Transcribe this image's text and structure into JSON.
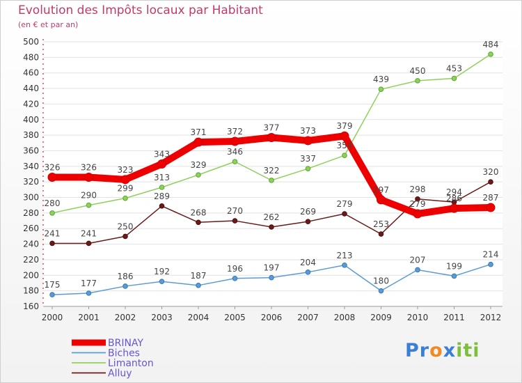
{
  "title": "Evolution des Impôts locaux par Habitant",
  "subtitle": "(en € et par an)",
  "logo": {
    "text": "Proxiti",
    "letters": [
      "P",
      "r",
      "o",
      "x",
      "i",
      "t",
      "i"
    ],
    "colors": [
      "#3a7fd5",
      "#3a7fd5",
      "#f08a24",
      "#3a7fd5",
      "#7cbf3a",
      "#7cbf3a",
      "#7cbf3a"
    ]
  },
  "chart_data": {
    "type": "line",
    "title": "Evolution des Impôts locaux par Habitant",
    "subtitle": "(en € et par an)",
    "xlabel": "",
    "ylabel": "",
    "categories": [
      "2000",
      "2001",
      "2002",
      "2003",
      "2004",
      "2005",
      "2006",
      "2007",
      "2008",
      "2009",
      "2010",
      "2011",
      "2012"
    ],
    "ylim": [
      160,
      500
    ],
    "yticks": [
      160,
      180,
      200,
      220,
      240,
      260,
      280,
      300,
      320,
      340,
      360,
      380,
      400,
      420,
      440,
      460,
      480,
      500
    ],
    "grid": "horizontal",
    "legend_position": "bottom-left",
    "series": [
      {
        "name": "BRINAY",
        "color": "#ee0000",
        "values": [
          326,
          326,
          323,
          343,
          371,
          372,
          377,
          373,
          379,
          297,
          279,
          286,
          287
        ],
        "labels": [
          "326",
          "326",
          "323",
          "343",
          "371",
          "372",
          "377",
          "373",
          "379",
          "297",
          "279",
          "286",
          "287"
        ]
      },
      {
        "name": "Biches",
        "color": "#5a9bd5",
        "values": [
          175,
          177,
          186,
          192,
          187,
          196,
          197,
          204,
          213,
          180,
          207,
          199,
          214
        ],
        "labels": [
          "175",
          "177",
          "186",
          "192",
          "187",
          "196",
          "197",
          "204",
          "213",
          "180",
          "207",
          "199",
          "214"
        ]
      },
      {
        "name": "Limanton",
        "color": "#8ed15a",
        "values": [
          280,
          290,
          299,
          313,
          329,
          346,
          322,
          337,
          354,
          439,
          450,
          453,
          484
        ],
        "labels": [
          "280",
          "290",
          "299",
          "313",
          "329",
          "346",
          "322",
          "337",
          "354",
          "439",
          "450",
          "453",
          "484"
        ]
      },
      {
        "name": "Alluy",
        "color": "#6b1a1a",
        "values": [
          241,
          241,
          250,
          289,
          268,
          270,
          262,
          269,
          279,
          253,
          298,
          294,
          320
        ],
        "labels": [
          "241",
          "241",
          "250",
          "289",
          "268",
          "270",
          "262",
          "269",
          "279",
          "253",
          "298",
          "294",
          "320"
        ]
      }
    ]
  }
}
